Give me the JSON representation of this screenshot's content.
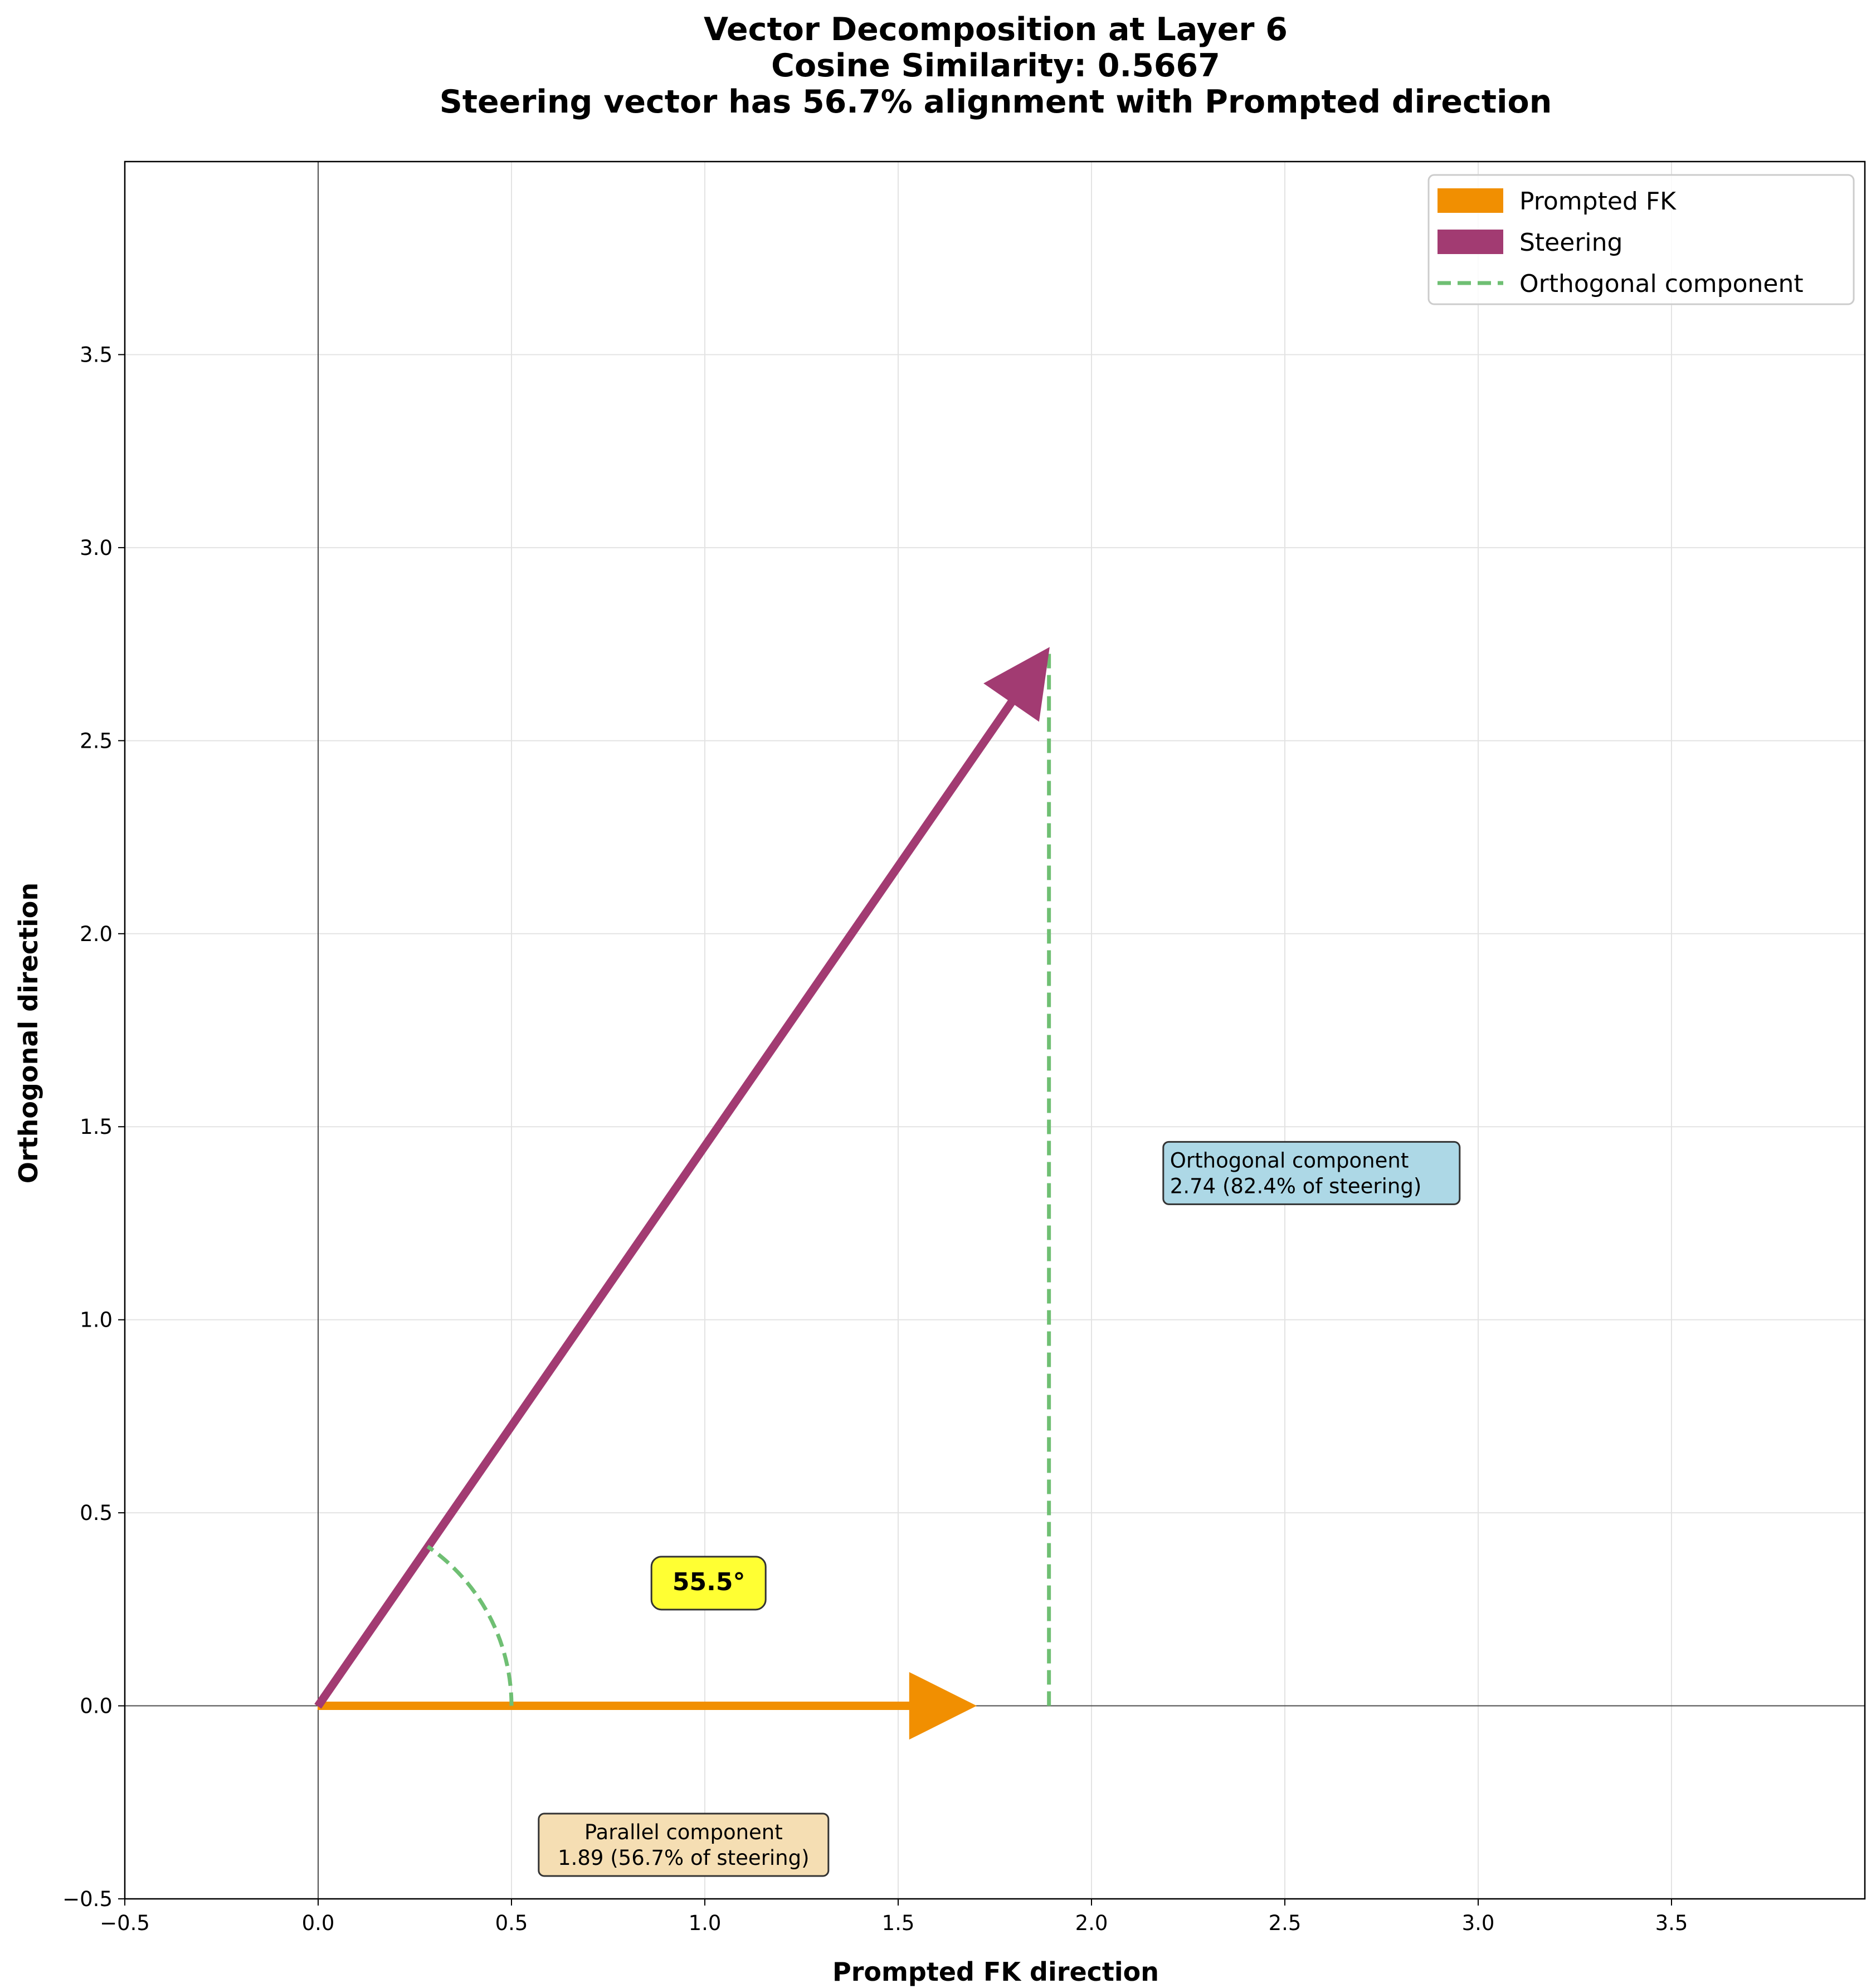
{
  "chart_data": {
    "type": "vector",
    "title_lines": [
      "Vector Decomposition at Layer 6",
      "Cosine Similarity: 0.5667",
      "Steering vector has 56.7% alignment with Prompted direction"
    ],
    "xlabel": "Prompted FK direction",
    "ylabel": "Orthogonal direction",
    "xlim": [
      -0.5,
      4.0
    ],
    "ylim": [
      -0.5,
      4.0
    ],
    "xticks": [
      -0.5,
      0.0,
      0.5,
      1.0,
      1.5,
      2.0,
      2.5,
      3.0,
      3.5
    ],
    "yticks": [
      -0.5,
      0.0,
      0.5,
      1.0,
      1.5,
      2.0,
      2.5,
      3.0,
      3.5
    ],
    "xtick_labels": [
      "−0.5",
      "0.0",
      "0.5",
      "1.0",
      "1.5",
      "2.0",
      "2.5",
      "3.0",
      "3.5"
    ],
    "ytick_labels": [
      "−0.5",
      "0.0",
      "0.5",
      "1.0",
      "1.5",
      "2.0",
      "2.5",
      "3.0",
      "3.5"
    ],
    "grid": true,
    "legend_position": "upper right",
    "vectors": [
      {
        "name": "Prompted FK",
        "x0": 0,
        "y0": 0,
        "x1": 1.7,
        "y1": 0,
        "color": "#f18f01"
      },
      {
        "name": "Steering",
        "x0": 0,
        "y0": 0,
        "x1": 1.89,
        "y1": 2.74,
        "color": "#a23b72"
      }
    ],
    "orthogonal_line": {
      "name": "Orthogonal component",
      "x": 1.89,
      "y0": 0,
      "y1": 2.74,
      "color": "#6fbf73"
    },
    "angle": {
      "degrees": 55.5,
      "label": "55.5°",
      "arc_radius": 0.5
    },
    "annotations": [
      {
        "name": "orthogonal-annotation",
        "lines": [
          "Orthogonal component",
          "2.74 (82.4% of steering)"
        ],
        "x": 2.2,
        "y": 1.38,
        "bg": "#add8e6"
      },
      {
        "name": "parallel-annotation",
        "lines": [
          "Parallel component",
          "1.89 (56.7% of steering)"
        ],
        "x": 0.945,
        "y": -0.36,
        "bg": "#f5deb3"
      }
    ],
    "legend": [
      {
        "label": "Prompted FK",
        "kind": "patch",
        "color": "#f18f01"
      },
      {
        "label": "Steering",
        "kind": "patch",
        "color": "#a23b72"
      },
      {
        "label": "Orthogonal component",
        "kind": "dashed",
        "color": "#6fbf73"
      }
    ]
  }
}
